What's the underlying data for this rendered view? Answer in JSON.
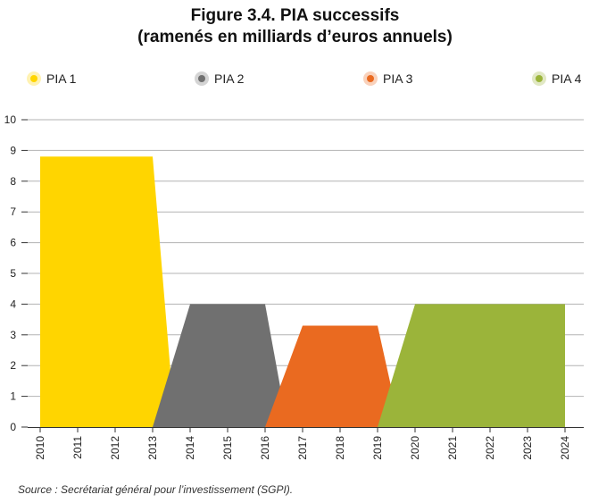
{
  "title_line1": "Figure 3.4. PIA successifs",
  "title_line2": "(ramenés en milliards d’euros annuels)",
  "source": "Source : Secrétariat général pour l’investissement (SGPI).",
  "legend": [
    {
      "label": "PIA 1",
      "color": "#FFD500"
    },
    {
      "label": "PIA 2",
      "color": "#707070"
    },
    {
      "label": "PIA 3",
      "color": "#EA6A20"
    },
    {
      "label": "PIA 4",
      "color": "#9BB43A"
    }
  ],
  "chart_data": {
    "type": "area",
    "x": [
      2010,
      2011,
      2012,
      2013,
      2014,
      2015,
      2016,
      2017,
      2018,
      2019,
      2020,
      2021,
      2022,
      2023,
      2024
    ],
    "xticklabels": [
      "2010",
      "2011",
      "2012",
      "2013",
      "2014",
      "2015",
      "2016",
      "2017",
      "2018",
      "2019",
      "2020",
      "2021",
      "2022",
      "2023",
      "2024"
    ],
    "ylim": [
      0,
      10
    ],
    "yticks": [
      0,
      1,
      2,
      3,
      4,
      5,
      6,
      7,
      8,
      9,
      10
    ],
    "grid": true,
    "legend_position": "top",
    "series": [
      {
        "name": "PIA 1",
        "color": "#FFD500",
        "points": [
          [
            2010,
            8.8
          ],
          [
            2013,
            8.8
          ],
          [
            2013.6,
            0
          ]
        ]
      },
      {
        "name": "PIA 2",
        "color": "#707070",
        "points": [
          [
            2013,
            0
          ],
          [
            2014,
            4
          ],
          [
            2016,
            4
          ],
          [
            2016.6,
            0
          ]
        ]
      },
      {
        "name": "PIA 3",
        "color": "#EA6A20",
        "points": [
          [
            2016,
            0
          ],
          [
            2017,
            3.3
          ],
          [
            2019,
            3.3
          ],
          [
            2019.6,
            0
          ]
        ]
      },
      {
        "name": "PIA 4",
        "color": "#9BB43A",
        "points": [
          [
            2019,
            0
          ],
          [
            2020,
            4
          ],
          [
            2024,
            4
          ],
          [
            2024,
            0
          ]
        ]
      }
    ]
  }
}
